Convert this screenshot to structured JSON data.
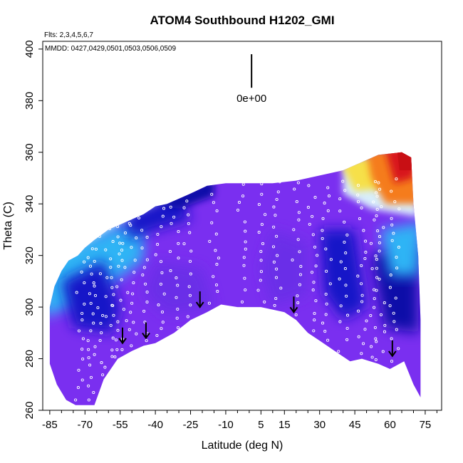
{
  "chart_data": {
    "type": "heatmap",
    "title": "ATOM4 Southbound H1202_GMI",
    "flights_label": "Flts: 2,3,4,5,6,7",
    "dates_label": "MMDD: 0427,0429,0501,0503,0506,0509",
    "xlabel": "Latitude (deg N)",
    "ylabel": "Theta (C)",
    "xlim": [
      -88,
      82
    ],
    "ylim": [
      260,
      403
    ],
    "x_ticks": [
      -85,
      -70,
      -55,
      -40,
      -25,
      -10,
      5,
      15,
      30,
      45,
      60,
      75
    ],
    "x_tick_labels": [
      "-85",
      "-70",
      "-55",
      "-40",
      "-25",
      "-10",
      "5",
      "15",
      "30",
      "45",
      "60",
      "75"
    ],
    "x_minor_ticks": [
      -80,
      -75,
      -65,
      -60,
      -50,
      -45,
      -35,
      -30,
      -20,
      -15,
      -5,
      0,
      10,
      20,
      25,
      35,
      40,
      50,
      55,
      65,
      70,
      80
    ],
    "y_ticks": [
      260,
      280,
      300,
      320,
      340,
      360,
      380,
      400
    ],
    "y_tick_labels": [
      "260",
      "280",
      "300",
      "320",
      "340",
      "360",
      "380",
      "400"
    ],
    "scale_label": "0e+00",
    "scale_bar": {
      "lat": 1,
      "theta": [
        385,
        398
      ]
    },
    "color_scale": {
      "low": "#7a2ff0",
      "mid_blue": "#1d2be0",
      "light_blue": "#2fb4f5",
      "pale": "#d8eefb",
      "yellow": "#f6e04a",
      "orange": "#f57b1a",
      "high": "#d8141a",
      "dark_red": "#c80f14"
    },
    "region_colors": {
      "background_field": "#7a2ff0",
      "mid_patch": "#6a2fe8",
      "deep_blue": "#1818c8",
      "navy": "#0c0ca8"
    },
    "boundary_lower": [
      [
        -85,
        278
      ],
      [
        -82,
        270
      ],
      [
        -78,
        264
      ],
      [
        -74,
        262
      ],
      [
        -66,
        262
      ],
      [
        -62,
        272
      ],
      [
        -56,
        280
      ],
      [
        -50,
        283
      ],
      [
        -45,
        285
      ],
      [
        -40,
        286
      ],
      [
        -32,
        290
      ],
      [
        -25,
        295
      ],
      [
        -18,
        298
      ],
      [
        -12,
        301
      ],
      [
        -5,
        300
      ],
      [
        5,
        300
      ],
      [
        15,
        298
      ],
      [
        20,
        295
      ],
      [
        25,
        290
      ],
      [
        30,
        287
      ],
      [
        38,
        282
      ],
      [
        43,
        279
      ],
      [
        48,
        280
      ],
      [
        55,
        278
      ],
      [
        60,
        276
      ],
      [
        66,
        279
      ],
      [
        70,
        270
      ],
      [
        73,
        265
      ]
    ],
    "boundary_upper": [
      [
        73,
        265
      ],
      [
        73,
        295
      ],
      [
        72,
        320
      ],
      [
        70,
        340
      ],
      [
        69,
        358
      ],
      [
        65,
        360
      ],
      [
        55,
        359
      ],
      [
        50,
        357
      ],
      [
        45,
        355
      ],
      [
        40,
        353
      ],
      [
        30,
        351
      ],
      [
        20,
        349
      ],
      [
        10,
        348
      ],
      [
        0,
        348
      ],
      [
        -10,
        348
      ],
      [
        -18,
        347
      ],
      [
        -25,
        344
      ],
      [
        -30,
        342
      ],
      [
        -35,
        340
      ],
      [
        -40,
        339
      ],
      [
        -45,
        336
      ],
      [
        -50,
        334
      ],
      [
        -55,
        332
      ],
      [
        -60,
        330
      ],
      [
        -63,
        328
      ],
      [
        -66,
        326
      ],
      [
        -70,
        323
      ],
      [
        -73,
        320
      ],
      [
        -77,
        318
      ],
      [
        -80,
        314
      ],
      [
        -83,
        308
      ],
      [
        -85,
        300
      ]
    ],
    "tropopause_arrows": [
      {
        "lat": -54,
        "theta": 286
      },
      {
        "lat": -44,
        "theta": 288
      },
      {
        "lat": -21,
        "theta": 300
      },
      {
        "lat": 19,
        "theta": 298
      },
      {
        "lat": 61,
        "theta": 281
      }
    ],
    "flight_tracks_lat": [
      -72,
      -68,
      -64,
      -60,
      -57,
      -53,
      -50,
      -45,
      -38,
      -32,
      -26,
      -15,
      -3,
      5,
      12,
      20,
      27,
      33,
      40,
      48,
      53,
      56,
      62
    ],
    "observation_marker_color": "#ffffff"
  }
}
